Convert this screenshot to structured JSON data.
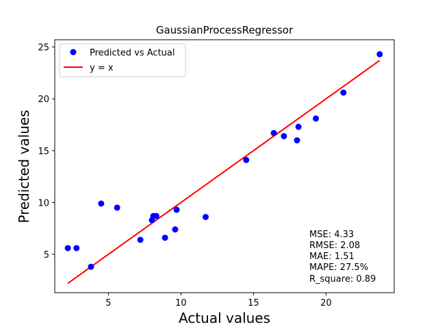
{
  "chart_data": {
    "type": "scatter",
    "title": "GaussianProcessRegressor",
    "xlabel": "Actual values",
    "ylabel": "Predicted values",
    "xlim": [
      1.3,
      24.7
    ],
    "ylim": [
      1.3,
      25.7
    ],
    "xticks": [
      5,
      10,
      15,
      20
    ],
    "yticks": [
      5,
      10,
      15,
      20,
      25
    ],
    "grid": false,
    "legend_position": "top-left",
    "series": [
      {
        "name": "Predicted vs Actual",
        "kind": "scatter",
        "color": "#0000ff",
        "points": [
          [
            2.2,
            5.6
          ],
          [
            2.8,
            5.6
          ],
          [
            3.8,
            3.8
          ],
          [
            4.5,
            9.9
          ],
          [
            5.6,
            9.5
          ],
          [
            7.2,
            6.4
          ],
          [
            8.0,
            8.3
          ],
          [
            8.1,
            8.7
          ],
          [
            8.3,
            8.7
          ],
          [
            8.9,
            6.6
          ],
          [
            9.6,
            7.4
          ],
          [
            9.7,
            9.3
          ],
          [
            11.7,
            8.6
          ],
          [
            14.5,
            14.1
          ],
          [
            16.4,
            16.7
          ],
          [
            17.1,
            16.4
          ],
          [
            18.0,
            16.0
          ],
          [
            18.1,
            17.3
          ],
          [
            19.3,
            18.1
          ],
          [
            21.2,
            20.6
          ],
          [
            23.7,
            24.3
          ]
        ]
      },
      {
        "name": "y = x",
        "kind": "line",
        "color": "#ff0000",
        "points": [
          [
            2.2,
            2.2
          ],
          [
            23.7,
            23.7
          ]
        ]
      }
    ],
    "annotations": [
      "MSE: 4.33",
      "RMSE: 2.08",
      "MAE: 1.51",
      "MAPE: 27.5%",
      "R_square: 0.89"
    ]
  }
}
